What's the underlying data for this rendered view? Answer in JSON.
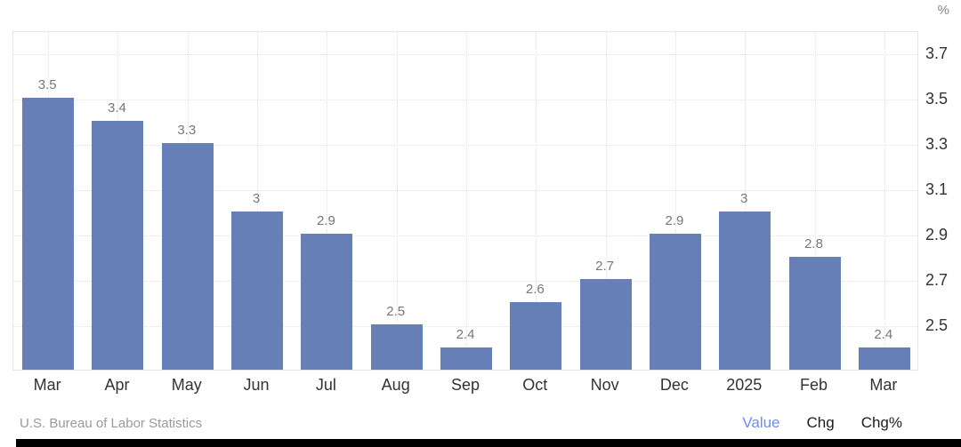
{
  "chart_data": {
    "type": "bar",
    "title": "",
    "unit_label": "%",
    "categories": [
      "Mar",
      "Apr",
      "May",
      "Jun",
      "Jul",
      "Aug",
      "Sep",
      "Oct",
      "Nov",
      "Dec",
      "2025",
      "Feb",
      "Mar"
    ],
    "values": [
      3.5,
      3.4,
      3.3,
      3.0,
      2.9,
      2.5,
      2.4,
      2.6,
      2.7,
      2.9,
      3.0,
      2.8,
      2.4
    ],
    "data_labels": [
      "3.5",
      "3.4",
      "3.3",
      "3",
      "2.9",
      "2.5",
      "2.4",
      "2.6",
      "2.7",
      "2.9",
      "3",
      "2.8",
      "2.4"
    ],
    "y_ticks": [
      "3.7",
      "3.5",
      "3.3",
      "3.1",
      "2.9",
      "2.7",
      "2.5"
    ],
    "ylim": [
      2.3,
      3.8
    ],
    "xlabel": "",
    "ylabel": "%",
    "grid": true,
    "legend_position": "none",
    "colors": {
      "bar": "#6680b7",
      "grid": "#e3e3e3",
      "axis_border": "#e6e6e6",
      "data_label": "#777777",
      "axis_text": "#333333",
      "unit_text": "#888888"
    }
  },
  "footer": {
    "source": "U.S. Bureau of Labor Statistics",
    "links": [
      {
        "label": "Value",
        "active": true
      },
      {
        "label": "Chg",
        "active": false
      },
      {
        "label": "Chg%",
        "active": false
      }
    ],
    "colors": {
      "active_link": "#6e8df2",
      "link": "#1c1c1c",
      "source": "#9a9a9a"
    }
  }
}
